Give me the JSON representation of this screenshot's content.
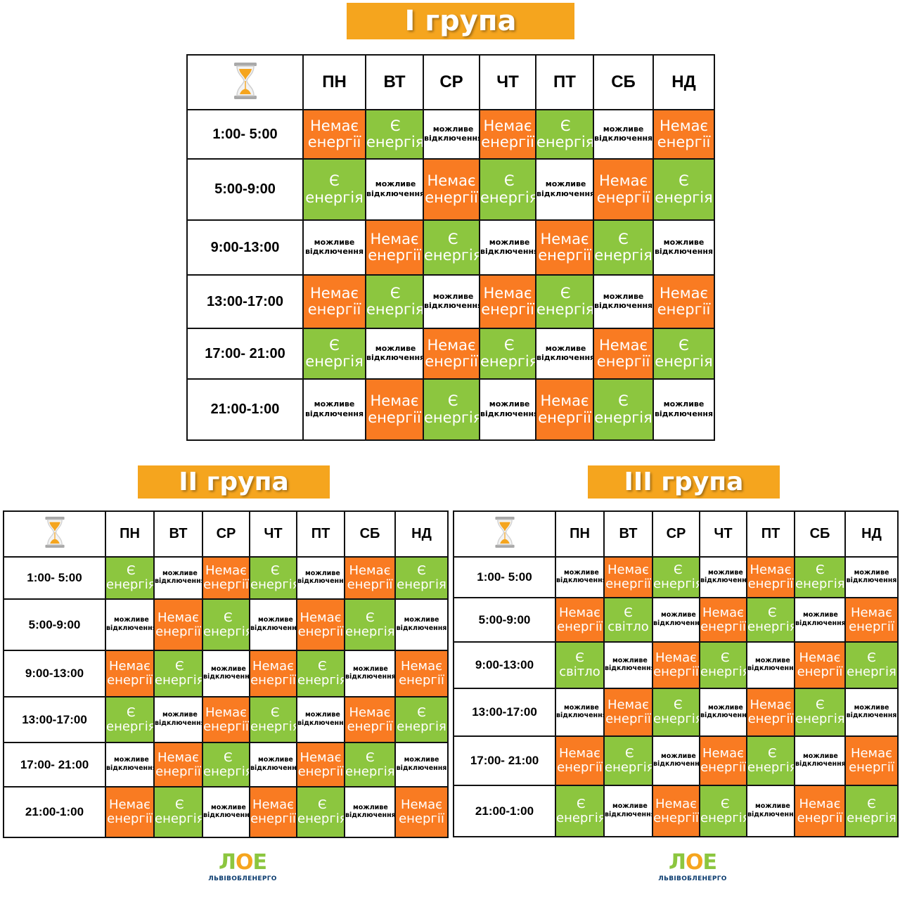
{
  "groups": [
    {
      "title": "I група",
      "days": [
        "ПН",
        "ВТ",
        "СР",
        "ЧТ",
        "ПТ",
        "СБ",
        "НД"
      ],
      "rows": [
        {
          "time": "1:00- 5:00",
          "cells": [
            "off",
            "on",
            "maybe",
            "off",
            "on",
            "maybe",
            "off"
          ]
        },
        {
          "time": "5:00-9:00",
          "cells": [
            "on",
            "maybe",
            "off",
            "on",
            "maybe",
            "off",
            "on"
          ]
        },
        {
          "time": "9:00-13:00",
          "cells": [
            "maybe",
            "off",
            "on",
            "maybe",
            "off",
            "on",
            "maybe"
          ]
        },
        {
          "time": "13:00-17:00",
          "cells": [
            "off",
            "on",
            "maybe",
            "off",
            "on",
            "maybe",
            "off"
          ]
        },
        {
          "time": "17:00- 21:00",
          "cells": [
            "on",
            "maybe",
            "off",
            "on",
            "maybe",
            "off",
            "on"
          ]
        },
        {
          "time": "21:00-1:00",
          "cells": [
            "maybe",
            "off",
            "on",
            "maybe",
            "off",
            "on",
            "maybe"
          ]
        }
      ]
    },
    {
      "title": "II група",
      "days": [
        "ПН",
        "ВТ",
        "СР",
        "ЧТ",
        "ПТ",
        "СБ",
        "НД"
      ],
      "rows": [
        {
          "time": "1:00- 5:00",
          "cells": [
            "on",
            "maybe",
            "off",
            "on",
            "maybe",
            "off",
            "on"
          ]
        },
        {
          "time": "5:00-9:00",
          "cells": [
            "maybe",
            "off",
            "on",
            "maybe",
            "off",
            "on",
            "maybe"
          ]
        },
        {
          "time": "9:00-13:00",
          "cells": [
            "off",
            "on",
            "maybe",
            "off",
            "on",
            "maybe",
            "off"
          ]
        },
        {
          "time": "13:00-17:00",
          "cells": [
            "on",
            "maybe",
            "off",
            "on",
            "maybe",
            "off",
            "on"
          ]
        },
        {
          "time": "17:00- 21:00",
          "cells": [
            "maybe",
            "off",
            "on",
            "maybe",
            "off",
            "on",
            "maybe"
          ]
        },
        {
          "time": "21:00-1:00",
          "cells": [
            "off",
            "on",
            "maybe",
            "off",
            "on",
            "maybe",
            "off"
          ]
        }
      ]
    },
    {
      "title": "III група",
      "days": [
        "ПН",
        "ВТ",
        "СР",
        "ЧТ",
        "ПТ",
        "СБ",
        "НД"
      ],
      "rows": [
        {
          "time": "1:00- 5:00",
          "cells": [
            "maybe",
            "off",
            "on",
            "maybe",
            "off",
            "on",
            "maybe"
          ]
        },
        {
          "time": "5:00-9:00",
          "cells": [
            "off",
            "light",
            "maybe",
            "off",
            "on",
            "maybe",
            "off"
          ]
        },
        {
          "time": "9:00-13:00",
          "cells": [
            "light",
            "maybe",
            "off",
            "on",
            "maybe",
            "off",
            "on"
          ]
        },
        {
          "time": "13:00-17:00",
          "cells": [
            "maybe",
            "off",
            "on",
            "maybe",
            "off",
            "on",
            "maybe"
          ]
        },
        {
          "time": "17:00- 21:00",
          "cells": [
            "off",
            "on",
            "maybe",
            "off",
            "on",
            "maybe",
            "off"
          ]
        },
        {
          "time": "21:00-1:00",
          "cells": [
            "on",
            "maybe",
            "off",
            "on",
            "maybe",
            "off",
            "on"
          ]
        }
      ]
    }
  ],
  "legend_text": {
    "off": [
      "Немає",
      "енергії"
    ],
    "on": [
      "Є",
      "енергія"
    ],
    "light": [
      "Є",
      "світло"
    ],
    "maybe": [
      "можливе",
      "відключення"
    ]
  },
  "colors": {
    "title_bg": "#f5a51e",
    "off": "#f97b22",
    "on": "#8cc63f",
    "maybe": "#ffffff",
    "border": "#111111"
  },
  "header_icon": "hourglass-icon",
  "logo": {
    "mark": "ЛОЕ",
    "name": "ЛЬВІВОБЛЕНЕРГО"
  }
}
